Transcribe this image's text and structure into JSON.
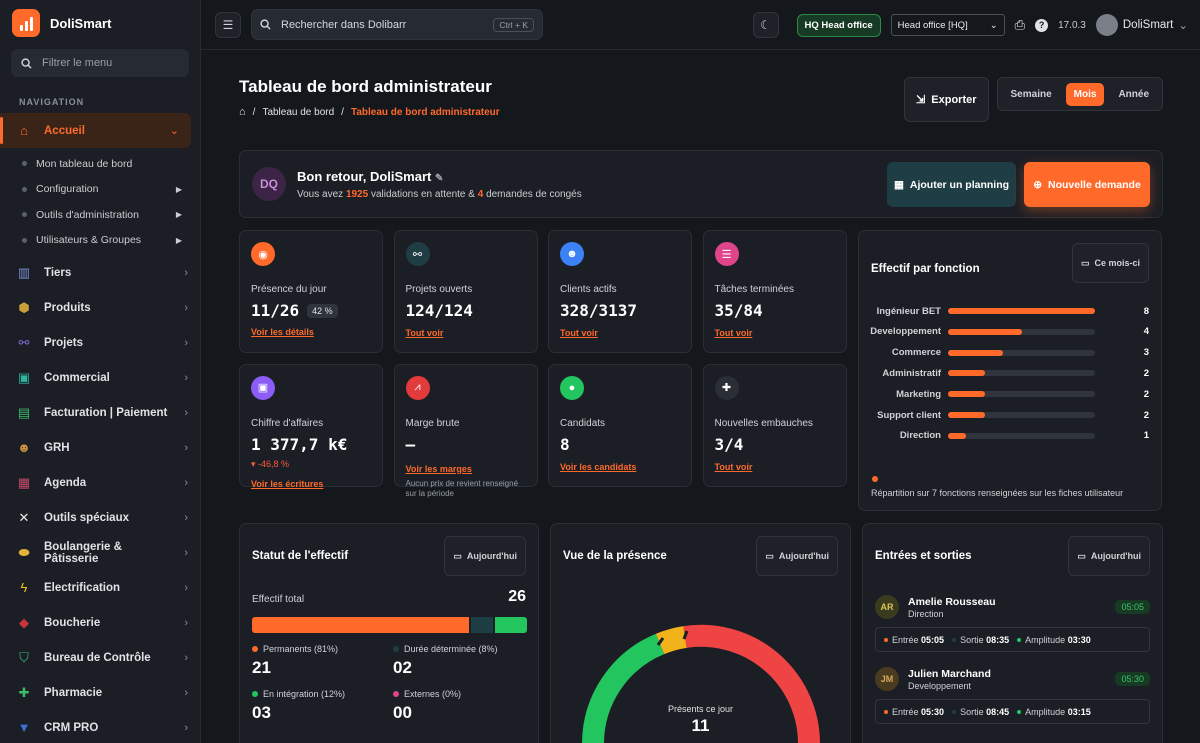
{
  "brand": {
    "name": "DoliSmart"
  },
  "sidebar": {
    "filter_placeholder": "Filtrer le menu",
    "section_label": "NAVIGATION",
    "active": {
      "label": "Accueil"
    },
    "subitems": [
      {
        "label": "Mon tableau de bord",
        "has_submenu": false
      },
      {
        "label": "Configuration",
        "has_submenu": true
      },
      {
        "label": "Outils d'administration",
        "has_submenu": true
      },
      {
        "label": "Utilisateurs & Groupes",
        "has_submenu": true
      }
    ],
    "items": [
      {
        "label": "Tiers",
        "icon": "building-icon",
        "color": "#7b8fd6"
      },
      {
        "label": "Produits",
        "icon": "box-icon",
        "color": "#c9a13b"
      },
      {
        "label": "Projets",
        "icon": "sitemap-icon",
        "color": "#7b6fd6"
      },
      {
        "label": "Commercial",
        "icon": "briefcase-icon",
        "color": "#2fb7a0"
      },
      {
        "label": "Facturation | Paiement",
        "icon": "invoice-icon",
        "color": "#3dbb6b"
      },
      {
        "label": "GRH",
        "icon": "people-icon",
        "color": "#c9913b"
      },
      {
        "label": "Agenda",
        "icon": "calendar-icon",
        "color": "#c84a6b"
      },
      {
        "label": "Outils spéciaux",
        "icon": "tools-icon",
        "color": "#e6e8eb"
      },
      {
        "label": "Boulangerie & Pâtisserie",
        "icon": "bread-icon",
        "color": "#e0b43a"
      },
      {
        "label": "Electrification",
        "icon": "bolt-icon",
        "color": "#f2c21b"
      },
      {
        "label": "Boucherie",
        "icon": "meat-icon",
        "color": "#c8343b"
      },
      {
        "label": "Bureau de Contrôle",
        "icon": "shield-icon",
        "color": "#3dbb8a"
      },
      {
        "label": "Pharmacie",
        "icon": "cross-icon",
        "color": "#3dbb6b"
      },
      {
        "label": "CRM PRO",
        "icon": "triangle-icon",
        "color": "#3b6fd6"
      }
    ]
  },
  "topbar": {
    "search_placeholder": "Rechercher dans Dolibarr",
    "search_shortcut": "Ctrl + K",
    "hq_badge": "HQ Head office",
    "entity_select": "Head office [HQ]",
    "version": "17.0.3",
    "user": "DoliSmart"
  },
  "page": {
    "title": "Tableau de bord administrateur",
    "breadcrumb": [
      "Tableau de bord",
      "Tableau de bord administrateur"
    ],
    "export_label": "Exporter",
    "periods": [
      "Semaine",
      "Mois",
      "Année"
    ],
    "active_period": "Mois"
  },
  "welcome": {
    "initials": "DQ",
    "title": "Bon retour, DoliSmart",
    "sub_prefix": "Vous avez",
    "validations": "1925",
    "sub_middle": "validations en attente &",
    "conges": "4",
    "sub_suffix": "demandes de congés",
    "plan_label": "Ajouter un planning",
    "new_label": "Nouvelle demande"
  },
  "kpis": [
    {
      "label": "Présence du jour",
      "value": "11/26",
      "badge": "42 %",
      "link": "Voir les détails",
      "color": "#ff6a2b",
      "icon": "user-clock-icon"
    },
    {
      "label": "Projets ouverts",
      "value": "124/124",
      "link": "Tout voir",
      "color": "#1f3d45",
      "icon": "project-icon"
    },
    {
      "label": "Clients actifs",
      "value": "328/3137",
      "link": "Tout voir",
      "color": "#3b82f6",
      "icon": "users-icon"
    },
    {
      "label": "Tâches terminées",
      "value": "35/84",
      "link": "Tout voir",
      "color": "#e0448a",
      "icon": "tasks-icon"
    },
    {
      "label": "Chiffre d'affaires",
      "value": "1 377,7 k€",
      "delta": "-46,8 %",
      "link": "Voir les écritures",
      "color": "#8b5cf6",
      "icon": "wallet-icon"
    },
    {
      "label": "Marge brute",
      "value": "–",
      "link": "Voir les marges",
      "note": "Aucun prix de revient renseigné sur la période",
      "color": "#e23b3b",
      "icon": "chart-icon"
    },
    {
      "label": "Candidats",
      "value": "8",
      "link": "Voir les candidats",
      "color": "#22c55e",
      "icon": "candidate-icon"
    },
    {
      "label": "Nouvelles embauches",
      "value": "3/4",
      "link": "Tout voir",
      "color": "#2a2e35",
      "icon": "user-plus-icon"
    }
  ],
  "effectif": {
    "title": "Effectif par fonction",
    "period": "Ce mois-ci",
    "max": 8,
    "rows": [
      {
        "label": "Ingénieur BET",
        "value": 8
      },
      {
        "label": "Developpement",
        "value": 4
      },
      {
        "label": "Commerce",
        "value": 3
      },
      {
        "label": "Administratif",
        "value": 2
      },
      {
        "label": "Marketing",
        "value": 2
      },
      {
        "label": "Support client",
        "value": 2
      },
      {
        "label": "Direction",
        "value": 1
      }
    ],
    "footer": "Répartition sur 7 fonctions renseignées sur les fiches utilisateur"
  },
  "statut": {
    "title": "Statut de l'effectif",
    "period": "Aujourd'hui",
    "total_label": "Effectif total",
    "total": "26",
    "segments": [
      {
        "label": "Permanents (81%)",
        "value": "21",
        "pct": 81,
        "color": "#ff6a2b"
      },
      {
        "label": "Durée déterminée (8%)",
        "value": "02",
        "pct": 8,
        "color": "#1f3d45"
      },
      {
        "label": "En intégration (12%)",
        "value": "03",
        "pct": 12,
        "color": "#22c55e"
      },
      {
        "label": "Externes (0%)",
        "value": "00",
        "pct": 0,
        "color": "#e0448a"
      }
    ]
  },
  "presence": {
    "title": "Vue de la présence",
    "period": "Aujourd'hui",
    "center_label": "Présents ce jour",
    "center_value": "11"
  },
  "entrees": {
    "title": "Entrées et sorties",
    "period": "Aujourd'hui",
    "rows": [
      {
        "initials": "AR",
        "name": "Amelie Rousseau",
        "role": "Direction",
        "time": "05:05",
        "entree": "05:05",
        "sortie": "08:35",
        "amplitude": "03:30",
        "av_bg": "#3a3a1f",
        "av_fg": "#d6c65a"
      },
      {
        "initials": "JM",
        "name": "Julien Marchand",
        "role": "Developpement",
        "time": "05:30",
        "entree": "05:30",
        "sortie": "08:45",
        "amplitude": "03:15",
        "av_bg": "#4a3a1f",
        "av_fg": "#d6a65a"
      }
    ],
    "labels": {
      "entree": "Entrée",
      "sortie": "Sortie",
      "amplitude": "Amplitude"
    }
  }
}
